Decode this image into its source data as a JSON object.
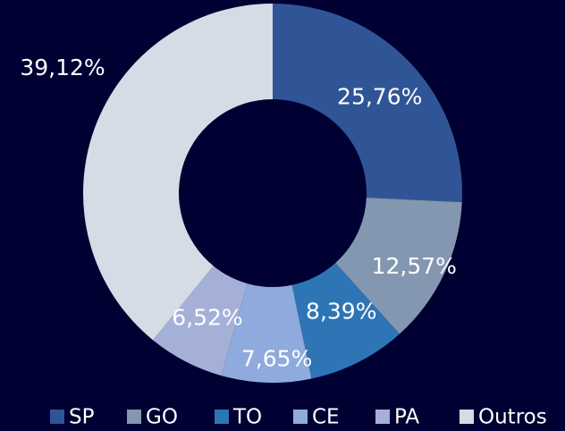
{
  "chart_data": {
    "type": "donut",
    "categories": [
      "SP",
      "GO",
      "TO",
      "CE",
      "PA",
      "Outros"
    ],
    "values": [
      25.76,
      12.57,
      8.39,
      7.65,
      6.52,
      39.12
    ],
    "value_labels": [
      "25,76%",
      "12,57%",
      "8,39%",
      "7,65%",
      "6,52%",
      "39,12%"
    ],
    "colors": [
      "#2f5597",
      "#8497b0",
      "#2e75b6",
      "#8faadc",
      "#a5b0d8",
      "#d6dce5"
    ],
    "legend": "bottom"
  }
}
